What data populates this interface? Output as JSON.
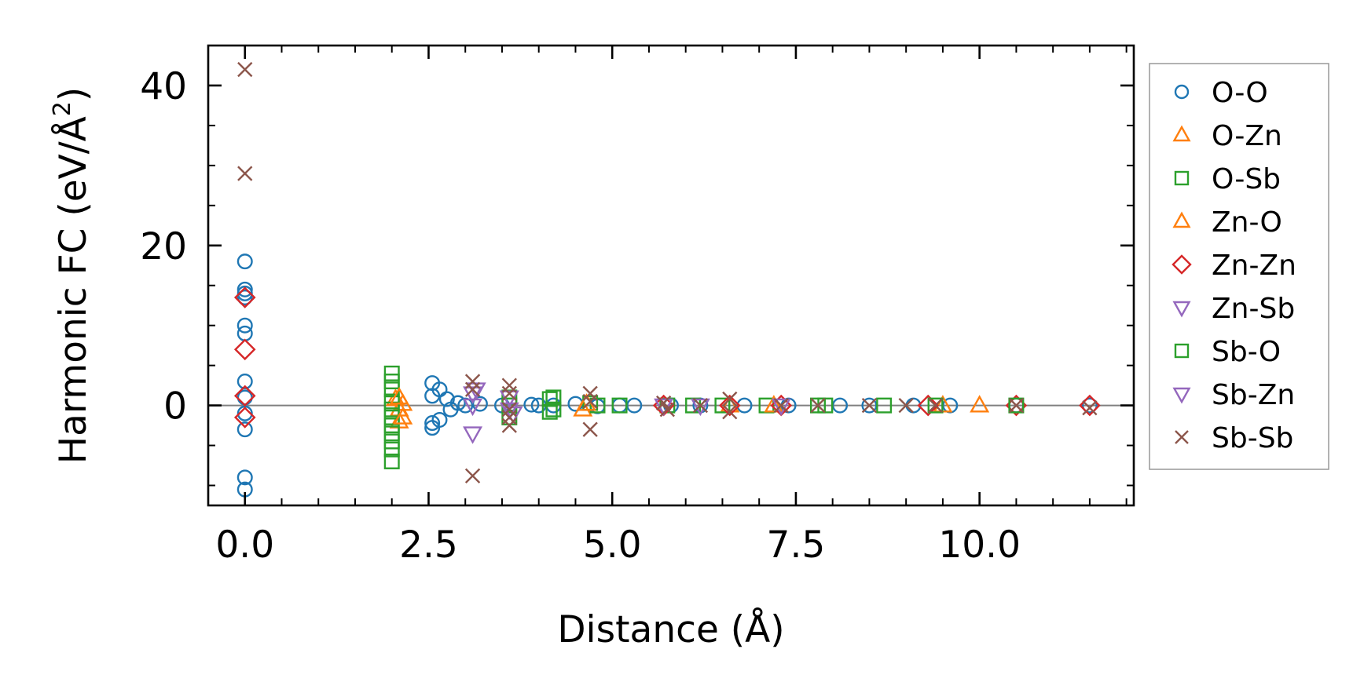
{
  "chart_data": {
    "type": "scatter",
    "title": "",
    "xlabel": "Distance (Å)",
    "ylabel": "Harmonic FC (eV/Å",
    "ylabel_sup": "2",
    "ylabel_tail": ")",
    "xlim": [
      -0.5,
      12.1
    ],
    "ylim": [
      -12.5,
      45
    ],
    "xticks": [
      {
        "value": 0,
        "label": "0.0"
      },
      {
        "value": 2.5,
        "label": "2.5"
      },
      {
        "value": 5,
        "label": "5.0"
      },
      {
        "value": 7.5,
        "label": "7.5"
      },
      {
        "value": 10,
        "label": "10.0"
      }
    ],
    "yticks": [
      {
        "value": 0,
        "label": "0"
      },
      {
        "value": 20,
        "label": "20"
      },
      {
        "value": 40,
        "label": "40"
      }
    ],
    "zero_line": true,
    "grid": false,
    "legend_position": "outside-right",
    "series": [
      {
        "name": "O-O",
        "marker": "circle",
        "color": "#1f77b4",
        "points": [
          [
            0,
            18
          ],
          [
            0,
            14.5
          ],
          [
            0,
            14
          ],
          [
            0,
            13.5
          ],
          [
            0,
            10
          ],
          [
            0,
            9
          ],
          [
            0,
            3
          ],
          [
            0,
            1
          ],
          [
            0,
            -1
          ],
          [
            0,
            -3
          ],
          [
            0,
            -9
          ],
          [
            0,
            -10.5
          ],
          [
            2.55,
            2.8
          ],
          [
            2.55,
            1.2
          ],
          [
            2.55,
            -2.2
          ],
          [
            2.55,
            -2.8
          ],
          [
            2.65,
            2
          ],
          [
            2.65,
            -1.8
          ],
          [
            2.75,
            0.8
          ],
          [
            2.8,
            -0.5
          ],
          [
            2.9,
            0.3
          ],
          [
            3,
            0
          ],
          [
            3.2,
            0.2
          ],
          [
            3.5,
            0
          ],
          [
            3.9,
            0.1
          ],
          [
            4,
            0
          ],
          [
            4.2,
            0
          ],
          [
            4.5,
            0.2
          ],
          [
            4.8,
            -0.1
          ],
          [
            5.1,
            0
          ],
          [
            5.3,
            0
          ],
          [
            5.8,
            0
          ],
          [
            6.2,
            0
          ],
          [
            6.8,
            0
          ],
          [
            7.4,
            0
          ],
          [
            8.1,
            0
          ],
          [
            8.5,
            0
          ],
          [
            9.1,
            0
          ],
          [
            9.6,
            0
          ],
          [
            10.5,
            0
          ],
          [
            11.5,
            0
          ]
        ]
      },
      {
        "name": "O-Zn",
        "marker": "triangle-up",
        "color": "#ff7f0e",
        "points": [
          [
            2.05,
            0.8
          ],
          [
            2.1,
            -0.5
          ],
          [
            2.1,
            -2
          ],
          [
            2.15,
            0.2
          ],
          [
            4.6,
            -0.5
          ],
          [
            6.6,
            0
          ],
          [
            9.5,
            0
          ],
          [
            10,
            0
          ]
        ]
      },
      {
        "name": "O-Sb",
        "marker": "square",
        "color": "#2ca02c",
        "points": [
          [
            2,
            4
          ],
          [
            2,
            3
          ],
          [
            2,
            2
          ],
          [
            2,
            0.5
          ],
          [
            2,
            -0.5
          ],
          [
            2,
            -1.5
          ],
          [
            2,
            -2.5
          ],
          [
            2,
            -3.5
          ],
          [
            2,
            -4.5
          ],
          [
            2,
            -5.5
          ],
          [
            2,
            -7
          ],
          [
            3.6,
            1
          ],
          [
            3.6,
            0
          ],
          [
            3.6,
            -1.5
          ],
          [
            4.15,
            0.8
          ],
          [
            4.15,
            -0.8
          ],
          [
            4.7,
            0.3
          ],
          [
            4.8,
            0
          ],
          [
            5.75,
            0
          ],
          [
            6.5,
            0
          ],
          [
            7.1,
            0
          ],
          [
            7.8,
            0
          ],
          [
            8.7,
            0
          ]
        ]
      },
      {
        "name": "Zn-O",
        "marker": "triangle-up",
        "color": "#ff7f0e",
        "points": [
          [
            2.1,
            1
          ],
          [
            2.15,
            -1.5
          ],
          [
            4.65,
            0.2
          ],
          [
            7.2,
            0
          ]
        ]
      },
      {
        "name": "Zn-Zn",
        "marker": "diamond",
        "color": "#d62728",
        "points": [
          [
            0,
            13.5
          ],
          [
            0,
            7
          ],
          [
            0,
            1.2
          ],
          [
            0,
            -1.5
          ],
          [
            5.7,
            0
          ],
          [
            6.6,
            0
          ],
          [
            7.3,
            0
          ],
          [
            9.3,
            0
          ],
          [
            10.5,
            0
          ],
          [
            11.5,
            0
          ]
        ]
      },
      {
        "name": "Zn-Sb",
        "marker": "triangle-down",
        "color": "#9467bd",
        "points": [
          [
            3.1,
            1.5
          ],
          [
            3.1,
            0
          ],
          [
            3.1,
            -3.5
          ],
          [
            3.6,
            1
          ],
          [
            3.6,
            -0.5
          ],
          [
            5.7,
            0
          ],
          [
            7.3,
            0
          ]
        ]
      },
      {
        "name": "Sb-O",
        "marker": "square",
        "color": "#2ca02c",
        "points": [
          [
            4.2,
            1
          ],
          [
            4.2,
            -0.5
          ],
          [
            5.1,
            0
          ],
          [
            6.1,
            0
          ],
          [
            7.9,
            0
          ],
          [
            9.4,
            0
          ],
          [
            10.5,
            0
          ]
        ]
      },
      {
        "name": "Sb-Zn",
        "marker": "triangle-down",
        "color": "#9467bd",
        "points": [
          [
            3.15,
            2
          ],
          [
            3.65,
            -1
          ],
          [
            6.2,
            0
          ]
        ]
      },
      {
        "name": "Sb-Sb",
        "marker": "x",
        "color": "#8c564b",
        "points": [
          [
            0,
            42
          ],
          [
            0,
            29
          ],
          [
            3.1,
            3
          ],
          [
            3.1,
            2
          ],
          [
            3.1,
            -8.8
          ],
          [
            3.6,
            2.5
          ],
          [
            3.6,
            1.5
          ],
          [
            3.6,
            -0.5
          ],
          [
            3.6,
            -1.5
          ],
          [
            3.6,
            -2.5
          ],
          [
            4.7,
            1.5
          ],
          [
            4.7,
            0.5
          ],
          [
            4.7,
            -3
          ],
          [
            5.7,
            0.3
          ],
          [
            5.75,
            -0.5
          ],
          [
            6.2,
            0
          ],
          [
            6.6,
            0.8
          ],
          [
            6.6,
            -0.8
          ],
          [
            7.3,
            0
          ],
          [
            7.8,
            0
          ],
          [
            8.5,
            0
          ],
          [
            9,
            0
          ],
          [
            9.4,
            0
          ],
          [
            10.5,
            0
          ],
          [
            11.5,
            -0.3
          ]
        ]
      }
    ]
  }
}
